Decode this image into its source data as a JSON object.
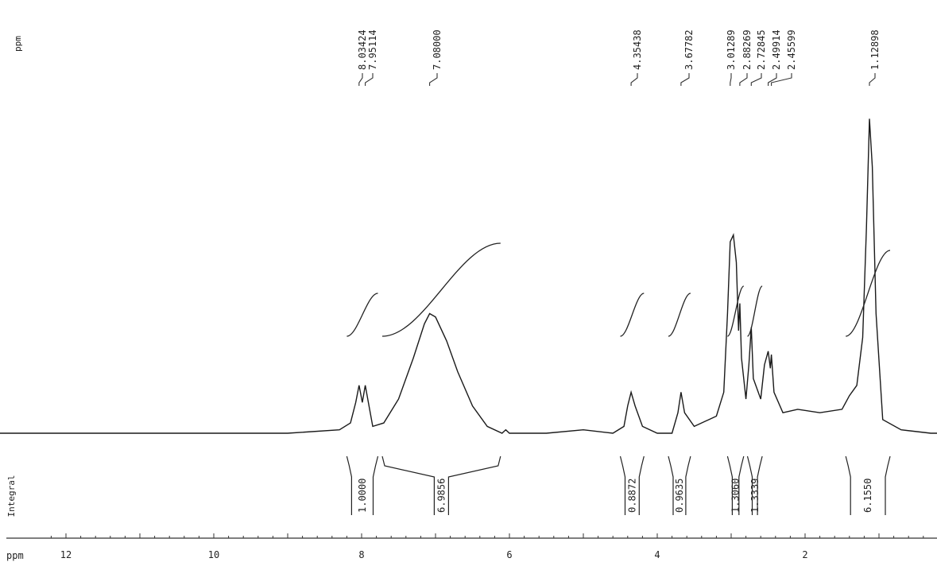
{
  "chart_data": {
    "type": "line",
    "title": "",
    "xlabel": "ppm",
    "ylabel": "ppm",
    "integral_label": "Integral",
    "x_reversed": true,
    "xlim": [
      13.1,
      -0.4
    ],
    "x_ticks": [
      12,
      10,
      8,
      6,
      4,
      2
    ],
    "grid": false,
    "peak_labels": [
      "8.03424",
      "7.95114",
      "7.08000",
      "4.35438",
      "3.67782",
      "3.01289",
      "2.88269",
      "2.72845",
      "2.49914",
      "2.45599",
      "1.12898"
    ],
    "peak_positions": [
      8.034,
      7.951,
      7.08,
      4.354,
      3.678,
      3.013,
      2.883,
      2.728,
      2.499,
      2.456,
      1.129
    ],
    "integrals": [
      {
        "label": "1.0000",
        "from": 8.2,
        "to": 7.78
      },
      {
        "label": "6.9856",
        "from": 7.72,
        "to": 6.12
      },
      {
        "label": "0.8872",
        "from": 4.5,
        "to": 4.18
      },
      {
        "label": "0.9635",
        "from": 3.85,
        "to": 3.55
      },
      {
        "label": "1.3060",
        "from": 3.05,
        "to": 2.83
      },
      {
        "label": "1.3339",
        "from": 2.78,
        "to": 2.58
      },
      {
        "label": "6.1550",
        "from": 1.45,
        "to": 0.85
      }
    ],
    "series": [
      {
        "x": [
          13.1,
          9.0,
          8.3,
          8.15,
          8.08,
          8.034,
          7.99,
          7.951,
          7.9,
          7.85,
          7.7,
          7.5,
          7.3,
          7.15,
          7.08,
          7.0,
          6.85,
          6.7,
          6.5,
          6.3,
          6.1,
          6.05,
          6.0,
          5.5,
          5.0,
          4.6,
          4.45,
          4.4,
          4.354,
          4.3,
          4.2,
          4.0,
          3.8,
          3.72,
          3.678,
          3.63,
          3.5,
          3.2,
          3.1,
          3.05,
          3.013,
          2.97,
          2.93,
          2.9,
          2.883,
          2.86,
          2.8,
          2.76,
          2.728,
          2.7,
          2.6,
          2.55,
          2.499,
          2.47,
          2.456,
          2.42,
          2.3,
          2.1,
          1.8,
          1.5,
          1.4,
          1.3,
          1.22,
          1.17,
          1.129,
          1.09,
          1.04,
          0.95,
          0.7,
          0.3,
          -0.4
        ],
        "y": [
          0.0,
          0.0,
          0.01,
          0.03,
          0.09,
          0.14,
          0.09,
          0.14,
          0.08,
          0.02,
          0.03,
          0.1,
          0.22,
          0.32,
          0.35,
          0.34,
          0.27,
          0.18,
          0.08,
          0.02,
          0.0,
          0.01,
          0.0,
          0.0,
          0.01,
          0.0,
          0.02,
          0.08,
          0.12,
          0.08,
          0.02,
          0.0,
          0.0,
          0.06,
          0.12,
          0.06,
          0.02,
          0.05,
          0.12,
          0.35,
          0.56,
          0.58,
          0.5,
          0.3,
          0.38,
          0.22,
          0.1,
          0.2,
          0.31,
          0.16,
          0.1,
          0.2,
          0.24,
          0.19,
          0.23,
          0.12,
          0.06,
          0.07,
          0.06,
          0.07,
          0.11,
          0.14,
          0.28,
          0.6,
          0.92,
          0.78,
          0.35,
          0.04,
          0.01,
          0.0,
          0.0
        ]
      }
    ]
  }
}
